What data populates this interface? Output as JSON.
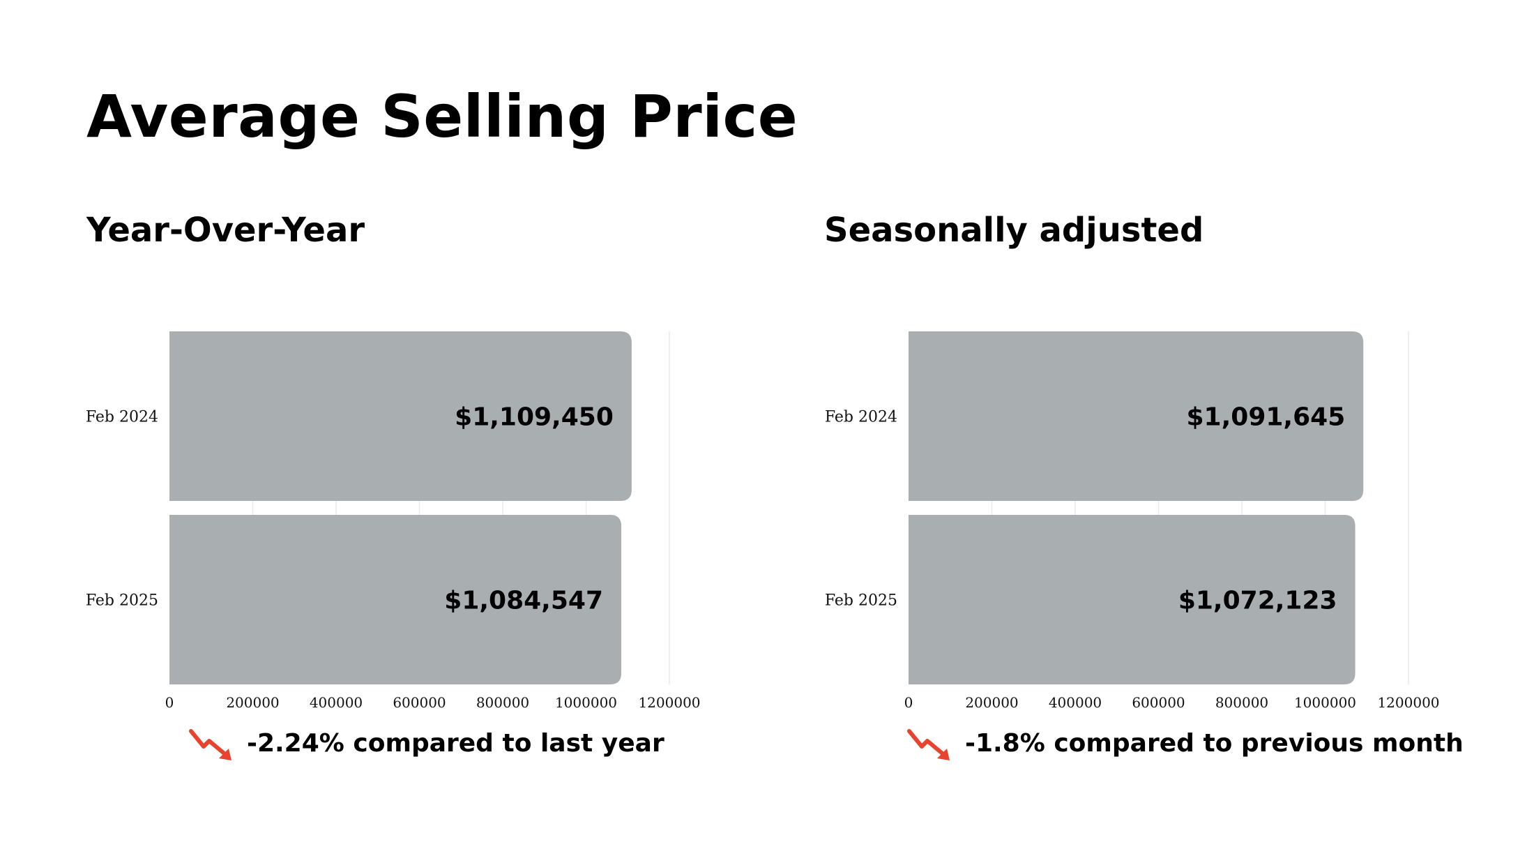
{
  "title": "Average Selling Price",
  "panels": [
    {
      "title": "Year-Over-Year",
      "caption": "-2.24% compared to last year",
      "caption_icon": "trend-down-arrow-icon"
    },
    {
      "title": "Seasonally adjusted",
      "caption": "-1.8% compared to previous month",
      "caption_icon": "trend-down-arrow-icon"
    }
  ],
  "colors": {
    "bar": "#a9aeb1",
    "trend_down": "#e8432f"
  },
  "chart_data": [
    {
      "type": "bar",
      "orientation": "horizontal",
      "title": "Year-Over-Year",
      "categories": [
        "Feb 2024",
        "Feb 2025"
      ],
      "values": [
        1109450,
        1084547
      ],
      "value_labels": [
        "$1,109,450",
        "$1,084,547"
      ],
      "xlim": [
        0,
        1200000
      ],
      "xticks": [
        "0",
        "200000",
        "400000",
        "600000",
        "800000",
        "1000000",
        "1200000"
      ],
      "grid": true
    },
    {
      "type": "bar",
      "orientation": "horizontal",
      "title": "Seasonally adjusted",
      "categories": [
        "Feb 2024",
        "Feb 2025"
      ],
      "values": [
        1091645,
        1072123
      ],
      "value_labels": [
        "$1,091,645",
        "$1,072,123"
      ],
      "xlim": [
        0,
        1200000
      ],
      "xticks": [
        "0",
        "200000",
        "400000",
        "600000",
        "800000",
        "1000000",
        "1200000"
      ],
      "grid": true
    }
  ]
}
